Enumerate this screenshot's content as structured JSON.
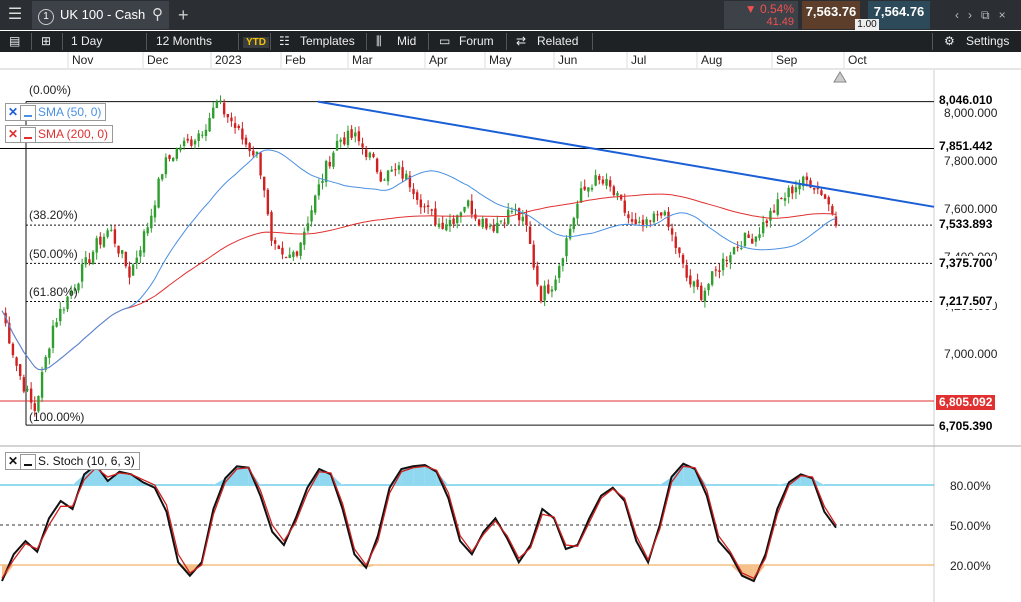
{
  "topbar": {
    "tab_number": "1",
    "instrument": "UK 100 - Cash",
    "change_pct": "▼ 0.54%",
    "change_points": "41.49",
    "sell": "7,563.76",
    "buy": "7,564.76",
    "spread": "1.00",
    "icons": [
      "menu-icon",
      "search-icon",
      "plus-icon",
      "chevron-left-icon",
      "chevron-right-icon",
      "popout-icon",
      "close-icon"
    ]
  },
  "toolbar": {
    "interval": "1 Day",
    "range": "12 Months",
    "ytd": "YTD",
    "templates": "Templates",
    "mid": "Mid",
    "forum": "Forum",
    "related": "Related",
    "settings": "Settings"
  },
  "chart_data": [
    {
      "type": "candlestick",
      "instrument": "UK 100 - Cash",
      "x_ticks": [
        "Nov",
        "Dec",
        "2023",
        "Feb",
        "Mar",
        "Apr",
        "May",
        "Jun",
        "Jul",
        "Aug",
        "Sep",
        "Oct"
      ],
      "y_ticks": [
        7000,
        7200,
        7400,
        7600,
        7800,
        8000
      ],
      "y_tick_labels": [
        "7,000.000",
        "7,200.000",
        "7,400.000",
        "7,600.000",
        "7,800.000",
        "8,000.000"
      ],
      "ylim": [
        6680,
        8120
      ],
      "indicators": [
        {
          "name": "SMA (50, 0)",
          "color": "#4a90e2"
        },
        {
          "name": "SMA (200, 0)",
          "color": "#e03030"
        }
      ],
      "fibonacci": [
        {
          "label": "(0.00%)",
          "value": 8046.01,
          "price_label": "8,046.010"
        },
        {
          "label": "(38.20%)",
          "value": 7533.893,
          "price_label": "7,533.893"
        },
        {
          "label": "(50.00%)",
          "value": 7375.7,
          "price_label": "7,375.700"
        },
        {
          "label": "(61.80%)",
          "value": 7217.507,
          "price_label": "7,217.507"
        },
        {
          "label": "(100.00%)",
          "value": 6705.39,
          "price_label": "6,705.390"
        }
      ],
      "horizontal_lines": [
        {
          "value": 7851.442,
          "price_label": "7,851.442",
          "color": "#000000"
        },
        {
          "value": 6805.092,
          "price_label": "6,805.092",
          "color": "#e03030"
        }
      ],
      "trendline": {
        "color": "#1a5fd6",
        "from": {
          "date": "Feb",
          "y": 8046
        },
        "to": {
          "date": "Oct",
          "y": 7610
        }
      },
      "marks_up_color": "#2e9e2e",
      "marks_down_color": "#d02020"
    },
    {
      "type": "line",
      "name": "S. Stoch (10, 6, 3)",
      "y_ticks": [
        20,
        50,
        80
      ],
      "y_tick_labels": [
        "20.00%",
        "50.00%",
        "80.00%"
      ],
      "ylim": [
        0,
        100
      ],
      "overbought": 80,
      "oversold": 20,
      "series": [
        {
          "values": [
            8,
            28,
            38,
            30,
            55,
            68,
            62,
            88,
            95,
            83,
            90,
            88,
            82,
            78,
            60,
            22,
            12,
            22,
            62,
            85,
            94,
            93,
            72,
            45,
            35,
            55,
            78,
            92,
            88,
            62,
            28,
            18,
            42,
            78,
            92,
            94,
            95,
            90,
            70,
            38,
            28,
            45,
            55,
            40,
            22,
            35,
            62,
            55,
            32,
            35,
            55,
            72,
            78,
            68,
            38,
            22,
            50,
            86,
            96,
            92,
            72,
            38,
            28,
            12,
            8,
            28,
            62,
            82,
            88,
            85,
            60,
            48
          ]
        },
        {
          "values": [
            10,
            24,
            36,
            32,
            50,
            64,
            64,
            84,
            93,
            86,
            89,
            88,
            84,
            80,
            65,
            28,
            14,
            20,
            58,
            82,
            92,
            93,
            76,
            50,
            38,
            52,
            74,
            90,
            89,
            66,
            32,
            20,
            38,
            74,
            90,
            93,
            94,
            91,
            74,
            42,
            30,
            43,
            53,
            42,
            25,
            33,
            58,
            56,
            35,
            34,
            52,
            70,
            77,
            70,
            42,
            24,
            47,
            82,
            94,
            93,
            76,
            42,
            30,
            14,
            10,
            25,
            58,
            80,
            87,
            86,
            64,
            50
          ]
        }
      ],
      "series_colors": [
        "#111111",
        "#d02020"
      ]
    }
  ]
}
